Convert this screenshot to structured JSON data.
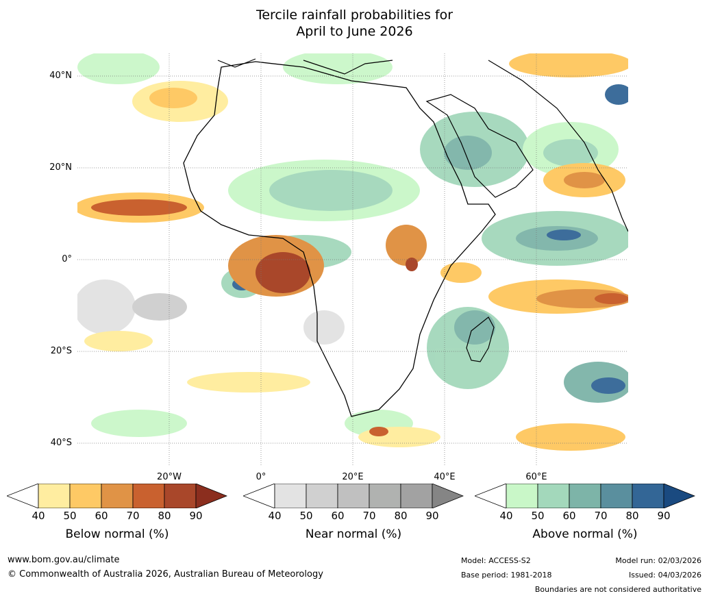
{
  "title": {
    "line1": "Tercile rainfall probabilities for",
    "line2": "April to June 2026"
  },
  "axes": {
    "lat_labels": [
      "40°N",
      "20°N",
      "0°",
      "20°S",
      "40°S"
    ],
    "lon_labels": [
      "20°W",
      "0°",
      "20°E",
      "40°E",
      "60°E"
    ]
  },
  "colorbars": [
    {
      "label": "Below normal (%)",
      "ticks": [
        "40",
        "50",
        "60",
        "70",
        "80",
        "90"
      ],
      "colors": [
        "#ffffff",
        "#ffeda0",
        "#fec965",
        "#e09346",
        "#c9612f",
        "#a9472a",
        "#8b2e1e"
      ]
    },
    {
      "label": "Near normal (%)",
      "ticks": [
        "40",
        "50",
        "60",
        "70",
        "80",
        "90"
      ],
      "colors": [
        "#ffffff",
        "#e3e3e3",
        "#d0d0d0",
        "#c0c0c0",
        "#b0b2b0",
        "#a2a2a2",
        "#858585"
      ]
    },
    {
      "label": "Above normal (%)",
      "ticks": [
        "40",
        "50",
        "60",
        "70",
        "80",
        "90"
      ],
      "colors": [
        "#ffffff",
        "#c9f7c8",
        "#a3d8bb",
        "#7db4a8",
        "#5a8f9e",
        "#336696",
        "#1a4a80"
      ]
    }
  ],
  "footer": {
    "website": "www.bom.gov.au/climate",
    "copyright": "© Commonwealth of Australia 2026, Australian Bureau of Meteorology",
    "model": "Model: ACCESS-S2",
    "base_period": "Base period: 1981-2018",
    "model_run": "Model run: 02/03/2026",
    "issued": "Issued: 04/03/2026",
    "disclaimer": "Boundaries are not considered authoritative"
  }
}
